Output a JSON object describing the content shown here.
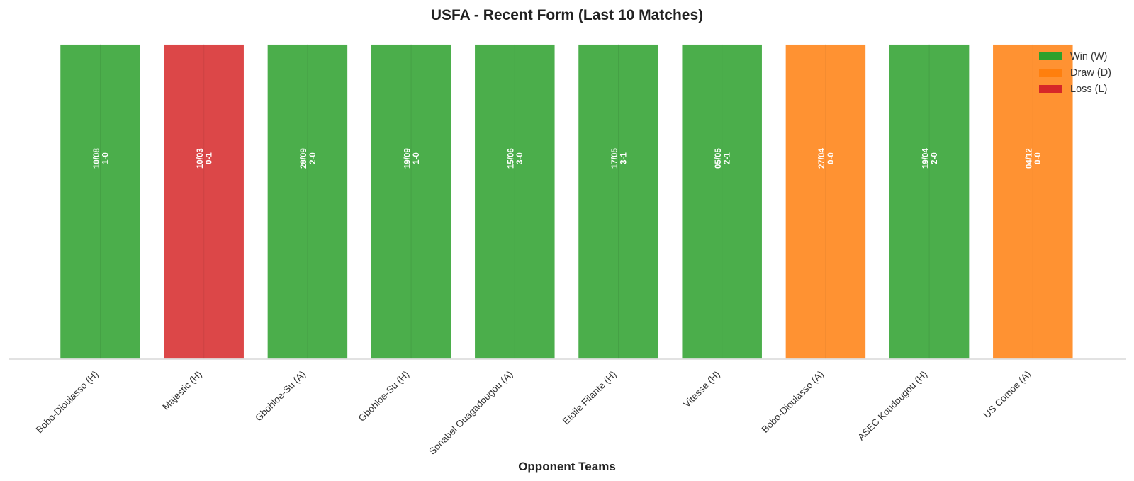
{
  "chart_data": {
    "type": "bar",
    "title": "USFA - Recent Form (Last 10 Matches)",
    "xlabel": "Opponent Teams",
    "ylabel": "",
    "categories": [
      "Bobo-Dioulasso (H)",
      "Majestic (H)",
      "Gbohloe-Su (A)",
      "Gbohloe-Su (H)",
      "Sonabel Ouagadougou (A)",
      "Etoile Filante (H)",
      "Vitesse (H)",
      "Bobo-Dioulasso (A)",
      "ASEC Koudougou (H)",
      "US Comoe (A)"
    ],
    "values": [
      1,
      1,
      1,
      1,
      1,
      1,
      1,
      1,
      1,
      1
    ],
    "ylim": [
      0,
      1.05
    ],
    "grid": false,
    "results": [
      "W",
      "L",
      "W",
      "W",
      "W",
      "W",
      "W",
      "D",
      "W",
      "D"
    ],
    "dates": [
      "10/08",
      "10/03",
      "28/09",
      "19/09",
      "15/06",
      "17/05",
      "05/05",
      "27/04",
      "19/04",
      "04/12"
    ],
    "scores": [
      "1-0",
      "0-1",
      "2-0",
      "1-0",
      "3-0",
      "3-1",
      "2-1",
      "0-0",
      "2-0",
      "0-0"
    ],
    "legend": {
      "placement": "top-right",
      "entries": [
        {
          "key": "W",
          "label": "Win (W)",
          "color": "#2ca02c"
        },
        {
          "key": "D",
          "label": "Draw (D)",
          "color": "#ff7f0e"
        },
        {
          "key": "L",
          "label": "Loss (L)",
          "color": "#d62728"
        }
      ]
    },
    "colors": {
      "W": "#2ca02c",
      "D": "#ff7f0e",
      "L": "#d62728"
    }
  }
}
